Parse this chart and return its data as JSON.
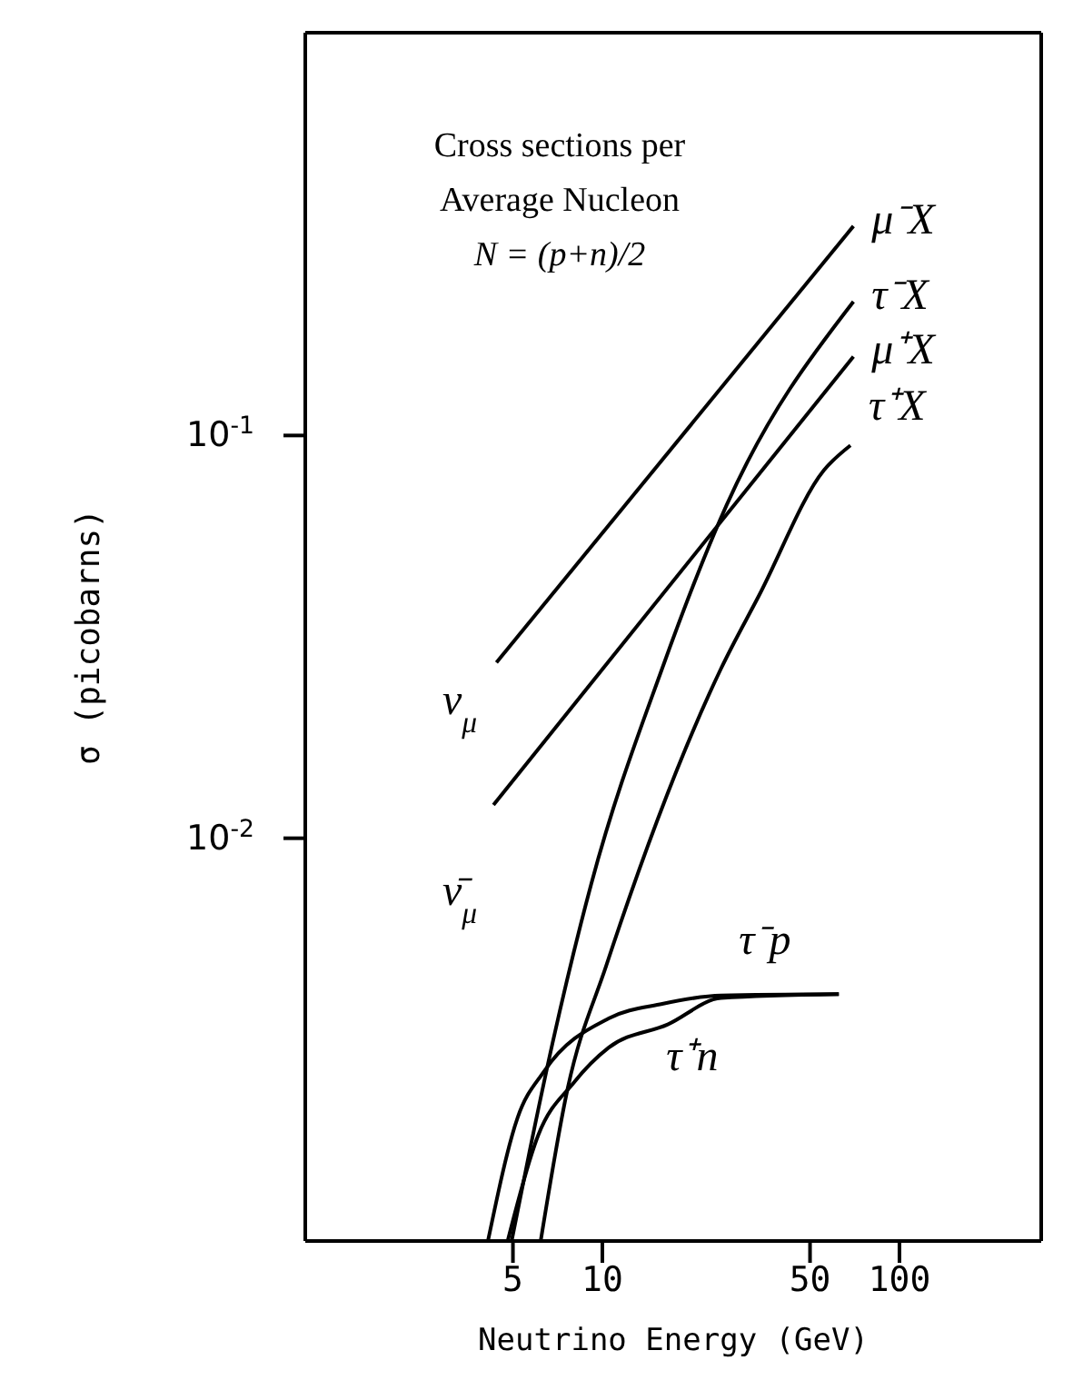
{
  "chart_data": {
    "type": "line",
    "xlabel": "Neutrino Energy (GeV)",
    "ylabel": "σ (picobarns)",
    "log": "xy",
    "xlim": [
      1,
      300
    ],
    "ylim": [
      0.001,
      1
    ],
    "xticks": [
      5,
      10,
      50,
      100
    ],
    "yticks": [
      {
        "value": 0.1,
        "label": "10$^{-1}$"
      },
      {
        "value": 0.01,
        "label": "10$^{-2}$"
      }
    ],
    "marker": "none",
    "line_style": "solid",
    "annotations": [
      "Cross sections per",
      "Average Nucleon",
      "N = (p+n)/2",
      "ν$_{μ}$",
      "ν̄$_{μ}$"
    ],
    "series": [
      {
        "name": "μ⁻X",
        "color": "#000000",
        "x": [
          4.4,
          70
        ],
        "values": [
          0.0273,
          0.331
        ]
      },
      {
        "name": "τ⁻X",
        "color": "#000000",
        "x": [
          4.95,
          5.68,
          6.81,
          9.17,
          15.9,
          26.2,
          70
        ],
        "values": [
          0.001,
          0.00166,
          0.00312,
          0.00769,
          0.0264,
          0.0672,
          0.215
        ]
      },
      {
        "name": "μ⁺X",
        "color": "#000000",
        "x": [
          4.3,
          70
        ],
        "values": [
          0.0121,
          0.157
        ]
      },
      {
        "name": "τ⁺X",
        "color": "#000000",
        "x": [
          6.2,
          7.64,
          10.3,
          25.1,
          33.7,
          55.7,
          68.4
        ],
        "values": [
          0.001,
          0.00239,
          0.00482,
          0.0264,
          0.0401,
          0.082,
          0.0945
        ]
      },
      {
        "name": "τ⁻p",
        "color": "#000000",
        "x": [
          4.12,
          5.18,
          6.37,
          10.5,
          15.9,
          25.1,
          62.5
        ],
        "values": [
          0.001,
          0.00202,
          0.00264,
          0.00357,
          0.00388,
          0.00407,
          0.0041
        ]
      },
      {
        "name": "τ⁺n",
        "color": "#000000",
        "x": [
          4.8,
          6.08,
          8.0,
          10.5,
          16.6,
          25.1,
          62.5
        ],
        "values": [
          0.001,
          0.00183,
          0.00247,
          0.00302,
          0.00345,
          0.00401,
          0.0041
        ]
      }
    ]
  }
}
